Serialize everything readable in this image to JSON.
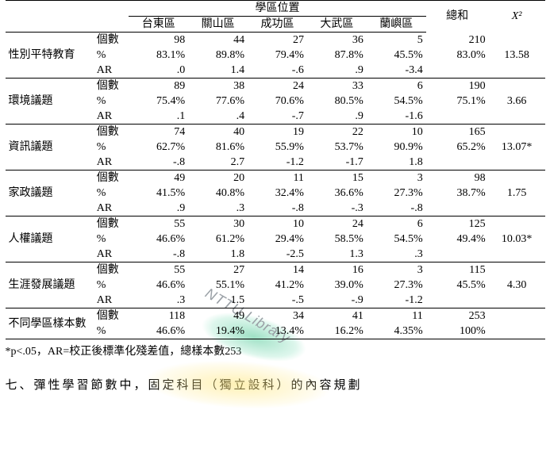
{
  "watermark": "NTTU Library",
  "header": {
    "group": "學區位置",
    "cols": [
      "台東區",
      "關山區",
      "成功區",
      "大武區",
      "蘭嶼區"
    ],
    "total": "總和",
    "chi": "X²"
  },
  "metrics": [
    "個數",
    "%",
    "AR"
  ],
  "rows": [
    {
      "label": "性別平特教育",
      "n": [
        "98",
        "44",
        "27",
        "36",
        "5",
        "210"
      ],
      "p": [
        "83.1%",
        "89.8%",
        "79.4%",
        "87.8%",
        "45.5%",
        "83.0%"
      ],
      "ar": [
        ".0",
        "1.4",
        "-.6",
        ".9",
        "-3.4"
      ],
      "chi": "13.58"
    },
    {
      "label": "環境議題",
      "n": [
        "89",
        "38",
        "24",
        "33",
        "6",
        "190"
      ],
      "p": [
        "75.4%",
        "77.6%",
        "70.6%",
        "80.5%",
        "54.5%",
        "75.1%"
      ],
      "ar": [
        ".1",
        ".4",
        "-.7",
        ".9",
        "-1.6"
      ],
      "chi": "3.66"
    },
    {
      "label": "資訊議題",
      "n": [
        "74",
        "40",
        "19",
        "22",
        "10",
        "165"
      ],
      "p": [
        "62.7%",
        "81.6%",
        "55.9%",
        "53.7%",
        "90.9%",
        "65.2%"
      ],
      "ar": [
        "-.8",
        "2.7",
        "-1.2",
        "-1.7",
        "1.8"
      ],
      "chi": "13.07*"
    },
    {
      "label": "家政議題",
      "n": [
        "49",
        "20",
        "11",
        "15",
        "3",
        "98"
      ],
      "p": [
        "41.5%",
        "40.8%",
        "32.4%",
        "36.6%",
        "27.3%",
        "38.7%"
      ],
      "ar": [
        ".9",
        ".3",
        "-.8",
        "-.3",
        "-.8"
      ],
      "chi": "1.75"
    },
    {
      "label": "人權議題",
      "n": [
        "55",
        "30",
        "10",
        "24",
        "6",
        "125"
      ],
      "p": [
        "46.6%",
        "61.2%",
        "29.4%",
        "58.5%",
        "54.5%",
        "49.4%"
      ],
      "ar": [
        "-.8",
        "1.8",
        "-2.5",
        "1.3",
        ".3"
      ],
      "chi": "10.03*"
    },
    {
      "label": "生涯發展議題",
      "n": [
        "55",
        "27",
        "14",
        "16",
        "3",
        "115"
      ],
      "p": [
        "46.6%",
        "55.1%",
        "41.2%",
        "39.0%",
        "27.3%",
        "45.5%"
      ],
      "ar": [
        ".3",
        "1.5",
        "-.5",
        "-.9",
        "-1.2"
      ],
      "chi": "4.30"
    }
  ],
  "lastrow": {
    "label": "不同學區樣本數",
    "n": [
      "118",
      "49",
      "34",
      "41",
      "11",
      "253"
    ],
    "p": [
      "46.6%",
      "19.4%",
      "13.4%",
      "16.2%",
      "4.35%",
      "100%"
    ]
  },
  "note": "*p<.05，AR=校正後標準化殘差值，總樣本數253",
  "footer": "七、彈性學習節數中，固定科目（獨立設科）的內容規劃"
}
